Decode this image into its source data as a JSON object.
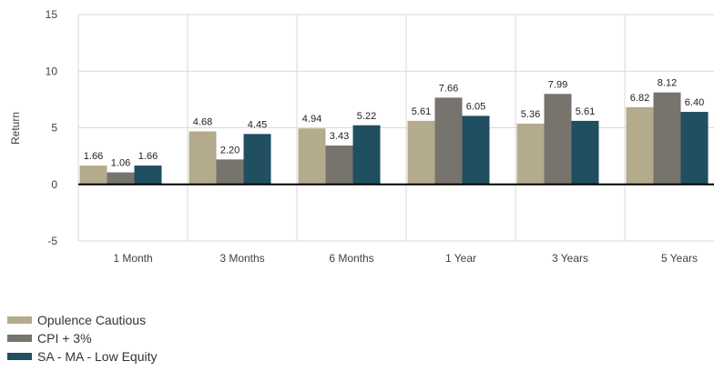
{
  "chart_data": {
    "type": "bar",
    "title": "",
    "xlabel": "",
    "ylabel": "Return",
    "ylim": [
      -5,
      15
    ],
    "yticks": [
      -5,
      0,
      5,
      10,
      15
    ],
    "grid": true,
    "legend_position": "bottom-left",
    "categories": [
      "1 Month",
      "3 Months",
      "6 Months",
      "1 Year",
      "3 Years",
      "5 Years"
    ],
    "series": [
      {
        "name": "Opulence Cautious",
        "color": "#b4ab8c",
        "values": [
          1.66,
          4.68,
          4.94,
          5.61,
          5.36,
          6.82
        ]
      },
      {
        "name": "CPI + 3%",
        "color": "#77736d",
        "values": [
          1.06,
          2.2,
          3.43,
          7.66,
          7.99,
          8.12
        ]
      },
      {
        "name": "SA - MA - Low Equity",
        "color": "#1f4f60",
        "values": [
          1.66,
          4.45,
          5.22,
          6.05,
          5.61,
          6.4
        ]
      }
    ],
    "data_labels": [
      [
        "1.66",
        "4.68",
        "4.94",
        "5.61",
        "5.36",
        "6.82"
      ],
      [
        "1.06",
        "2.20",
        "3.43",
        "7.66",
        "7.99",
        "8.12"
      ],
      [
        "1.66",
        "4.45",
        "5.22",
        "6.05",
        "5.61",
        "6.40"
      ]
    ]
  }
}
